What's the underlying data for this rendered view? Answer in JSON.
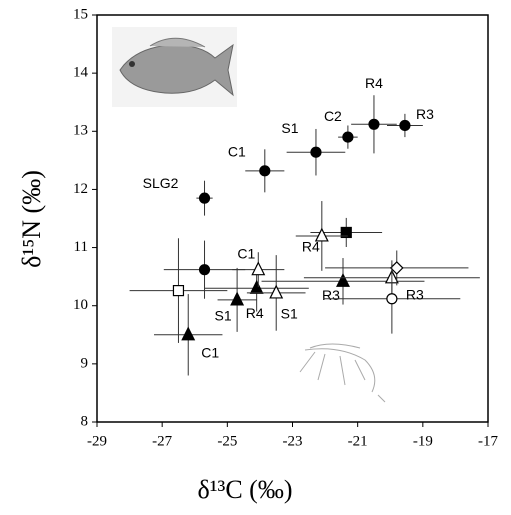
{
  "chart_data": {
    "type": "scatter",
    "xlabel": "δ¹³C (‰)",
    "ylabel": "δ¹⁵N (‰)",
    "xlim": [
      -29,
      -17
    ],
    "xticks": [
      -29,
      -27,
      -25,
      -23,
      -21,
      -19,
      -17
    ],
    "ylim": [
      8,
      15
    ],
    "yticks": [
      8,
      9,
      10,
      11,
      12,
      13,
      14,
      15
    ],
    "series": [
      {
        "marker": "circle",
        "fill": "#000000",
        "x": [
          -25.7,
          -23.85,
          -22.28,
          -21.3,
          -20.5,
          -19.55,
          -25.7
        ],
        "y": [
          11.85,
          12.32,
          12.64,
          12.9,
          13.12,
          13.1,
          10.62
        ],
        "xerr": [
          0.25,
          0.6,
          0.9,
          0.3,
          0.7,
          0.55,
          1.25
        ],
        "yerr": [
          0.3,
          0.37,
          0.4,
          0.2,
          0.5,
          0.2,
          0.5
        ],
        "labels": [
          "SLG2",
          "C1",
          "S1",
          "C2",
          "R4",
          "R3",
          null
        ]
      },
      {
        "marker": "square",
        "fill": "#000000",
        "x": [
          -21.35
        ],
        "y": [
          11.26
        ],
        "xerr": [
          1.1
        ],
        "yerr": [
          0.25
        ],
        "labels": [
          null
        ]
      },
      {
        "marker": "square",
        "fill": "#ffffff",
        "x": [
          -26.5
        ],
        "y": [
          10.26
        ],
        "xerr": [
          1.5
        ],
        "yerr": [
          0.9
        ],
        "labels": [
          null
        ]
      },
      {
        "marker": "triangle",
        "fill": "#000000",
        "x": [
          -26.2,
          -24.7,
          -24.1,
          -21.45
        ],
        "y": [
          9.5,
          10.1,
          10.3,
          10.42
        ],
        "xerr": [
          1.05,
          0.6,
          1.6,
          2.5
        ],
        "yerr": [
          0.7,
          0.55,
          0.4,
          0.4
        ],
        "labels": [
          "C1",
          "S1",
          "R4",
          "R3"
        ]
      },
      {
        "marker": "triangle",
        "fill": "#ffffff",
        "x": [
          -24.05,
          -23.5,
          -22.1,
          -19.95
        ],
        "y": [
          10.62,
          10.22,
          11.2,
          10.48
        ],
        "xerr": [
          0.8,
          0.9,
          0.8,
          2.7
        ],
        "yerr": [
          0.3,
          0.65,
          0.6,
          0.3
        ],
        "labels": [
          "C1",
          "S1",
          "R4",
          null
        ]
      },
      {
        "marker": "diamond",
        "fill": "#ffffff",
        "x": [
          -19.8
        ],
        "y": [
          10.65
        ],
        "xerr": [
          2.2
        ],
        "yerr": [
          0.3
        ],
        "labels": [
          null
        ]
      },
      {
        "marker": "circle",
        "fill": "#ffffff",
        "x": [
          -19.95
        ],
        "y": [
          10.12
        ],
        "xerr": [
          2.1
        ],
        "yerr": [
          0.6
        ],
        "labels": [
          "R3"
        ]
      }
    ]
  }
}
